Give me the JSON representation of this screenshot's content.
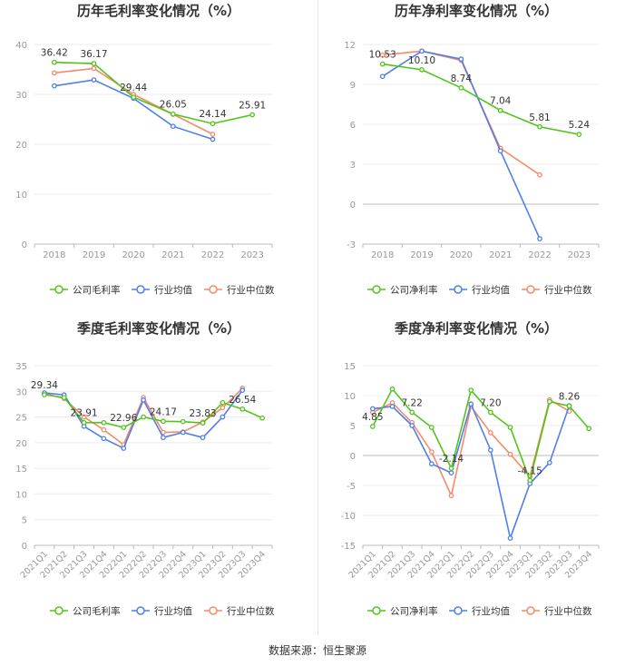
{
  "source": "数据来源：恒生聚源",
  "colors": {
    "green": "#52c41a",
    "blue": "#4f7fe8",
    "orange": "#f58a6a",
    "grid": "#ececec",
    "axis": "#bbbbbb",
    "tick": "#999999",
    "title": "#333333",
    "label": "#333333"
  },
  "chart_data": [
    {
      "type": "line",
      "title": "历年毛利率变化情况（%）",
      "categories": [
        "2018",
        "2019",
        "2020",
        "2021",
        "2022",
        "2023"
      ],
      "ylim": [
        0,
        40
      ],
      "yticks": [
        0,
        10,
        20,
        30,
        40
      ],
      "series": [
        {
          "name": "公司毛利率",
          "color": "#52c41a",
          "values": [
            36.42,
            36.17,
            29.44,
            26.05,
            24.14,
            25.91
          ]
        },
        {
          "name": "行业均值",
          "color": "#4f7fe8",
          "values": [
            31.7,
            32.9,
            29.2,
            23.6,
            21.0,
            null
          ]
        },
        {
          "name": "行业中位数",
          "color": "#f58a6a",
          "values": [
            34.3,
            35.2,
            30.0,
            26.0,
            22.0,
            null
          ]
        }
      ],
      "data_labels": [
        {
          "index": 0,
          "text": "36.42"
        },
        {
          "index": 1,
          "text": "36.17"
        },
        {
          "index": 2,
          "text": "29.44"
        },
        {
          "index": 3,
          "text": "26.05"
        },
        {
          "index": 4,
          "text": "24.14"
        },
        {
          "index": 5,
          "text": "25.91"
        }
      ]
    },
    {
      "type": "line",
      "title": "历年净利率变化情况（%）",
      "categories": [
        "2018",
        "2019",
        "2020",
        "2021",
        "2022",
        "2023"
      ],
      "ylim": [
        -3,
        12
      ],
      "yticks": [
        -3,
        0,
        3,
        6,
        9,
        12
      ],
      "series": [
        {
          "name": "公司净利率",
          "color": "#52c41a",
          "values": [
            10.53,
            10.1,
            8.74,
            7.04,
            5.81,
            5.24
          ]
        },
        {
          "name": "行业均值",
          "color": "#4f7fe8",
          "values": [
            9.6,
            11.5,
            10.9,
            4.0,
            -2.6,
            null
          ]
        },
        {
          "name": "行业中位数",
          "color": "#f58a6a",
          "values": [
            11.2,
            11.5,
            10.8,
            4.2,
            2.2,
            null
          ]
        }
      ],
      "data_labels": [
        {
          "index": 0,
          "text": "10.53"
        },
        {
          "index": 1,
          "text": "10.10"
        },
        {
          "index": 2,
          "text": "8.74"
        },
        {
          "index": 3,
          "text": "7.04"
        },
        {
          "index": 4,
          "text": "5.81"
        },
        {
          "index": 5,
          "text": "5.24"
        }
      ]
    },
    {
      "type": "line",
      "title": "季度毛利率变化情况（%）",
      "categories": [
        "2021Q1",
        "2021Q2",
        "2021Q3",
        "2021Q4",
        "2022Q1",
        "2022Q2",
        "2022Q3",
        "2022Q4",
        "2023Q1",
        "2023Q2",
        "2023Q3",
        "2023Q4"
      ],
      "ylim": [
        0,
        35
      ],
      "yticks": [
        0,
        5,
        10,
        15,
        20,
        25,
        30,
        35
      ],
      "series": [
        {
          "name": "公司毛利率",
          "color": "#52c41a",
          "values": [
            29.34,
            28.8,
            23.91,
            23.9,
            22.96,
            25.0,
            24.17,
            24.1,
            23.83,
            27.8,
            26.54,
            24.8
          ]
        },
        {
          "name": "行业均值",
          "color": "#4f7fe8",
          "values": [
            29.7,
            29.3,
            23.2,
            20.8,
            18.9,
            28.3,
            21.0,
            22.0,
            21.0,
            25.0,
            30.2,
            null
          ]
        },
        {
          "name": "行业中位数",
          "color": "#f58a6a",
          "values": [
            29.6,
            28.6,
            25.0,
            22.5,
            19.6,
            28.8,
            22.0,
            22.1,
            24.0,
            26.8,
            30.6,
            null
          ]
        }
      ],
      "data_labels": [
        {
          "index": 0,
          "text": "29.34"
        },
        {
          "index": 2,
          "text": "23.91"
        },
        {
          "index": 4,
          "text": "22.96"
        },
        {
          "index": 6,
          "text": "24.17"
        },
        {
          "index": 8,
          "text": "23.83"
        },
        {
          "index": 10,
          "text": "26.54"
        }
      ]
    },
    {
      "type": "line",
      "title": "季度净利率变化情况（%）",
      "categories": [
        "2021Q1",
        "2021Q2",
        "2021Q3",
        "2021Q4",
        "2022Q1",
        "2022Q2",
        "2022Q3",
        "2022Q4",
        "2023Q1",
        "2023Q2",
        "2023Q3",
        "2023Q4"
      ],
      "ylim": [
        -15,
        15
      ],
      "yticks": [
        -15,
        -10,
        -5,
        0,
        5,
        10,
        15
      ],
      "series": [
        {
          "name": "公司净利率",
          "color": "#52c41a",
          "values": [
            4.85,
            11.1,
            7.22,
            4.7,
            -2.14,
            10.9,
            7.2,
            4.7,
            -4.15,
            9.0,
            8.26,
            4.5
          ]
        },
        {
          "name": "行业均值",
          "color": "#4f7fe8",
          "values": [
            7.8,
            8.2,
            5.0,
            -1.4,
            -2.9,
            8.6,
            0.9,
            -13.8,
            -4.7,
            -1.2,
            8.3,
            null
          ]
        },
        {
          "name": "行业中位数",
          "color": "#f58a6a",
          "values": [
            7.2,
            8.8,
            5.5,
            0.6,
            -6.7,
            8.2,
            3.8,
            0.2,
            -3.5,
            9.3,
            7.4,
            null
          ]
        }
      ],
      "data_labels": [
        {
          "index": 0,
          "text": "4.85"
        },
        {
          "index": 2,
          "text": "7.22"
        },
        {
          "index": 4,
          "text": "-2.14"
        },
        {
          "index": 6,
          "text": "7.20"
        },
        {
          "index": 8,
          "text": "-4.15"
        },
        {
          "index": 10,
          "text": "8.26"
        }
      ]
    }
  ]
}
